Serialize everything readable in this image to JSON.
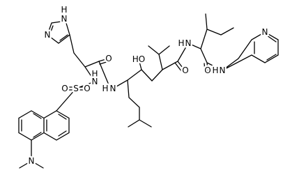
{
  "atom_labels": [
    "H",
    "N",
    "N",
    "O",
    "HO",
    "H",
    "N",
    "O",
    "O",
    "H",
    "N",
    "N",
    "O",
    "S",
    "O",
    "H",
    "N",
    "H",
    "N",
    "N"
  ]
}
